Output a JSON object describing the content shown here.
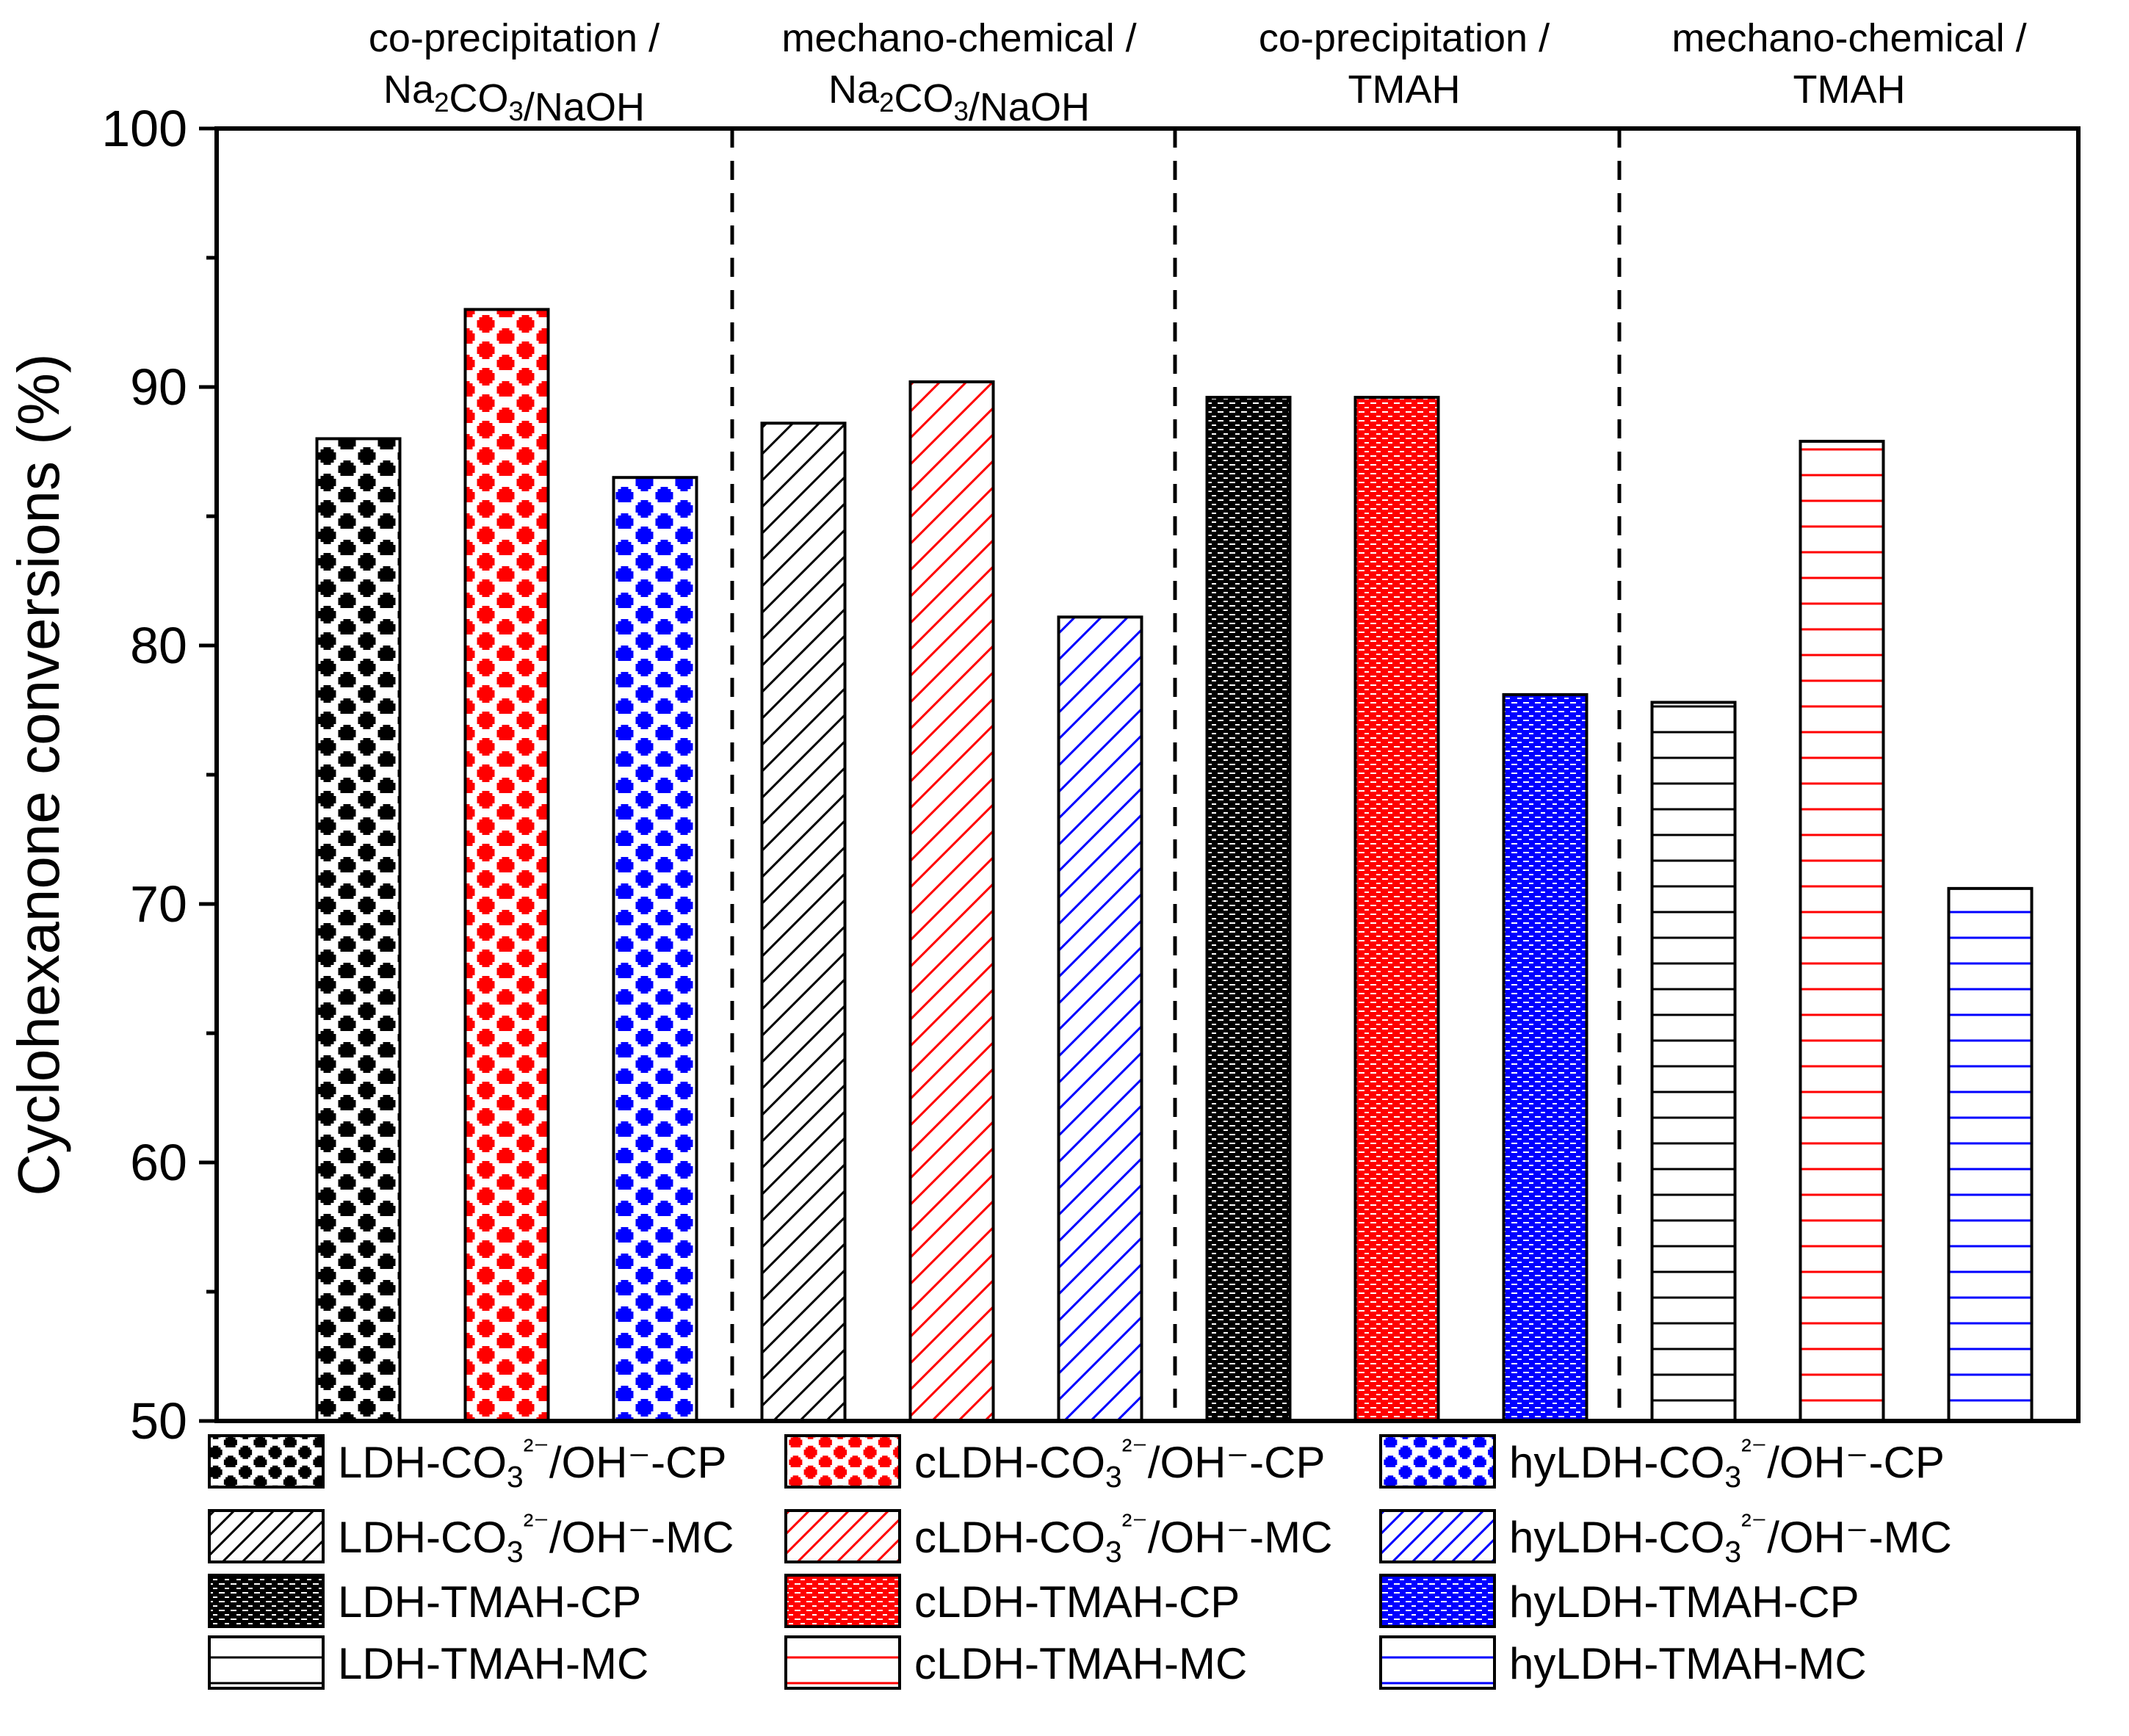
{
  "chart_data": {
    "type": "bar",
    "ylabel": "Cyclohexanone conversions (%)",
    "ylim": [
      50,
      100
    ],
    "yticks": [
      50,
      60,
      70,
      80,
      90,
      100
    ],
    "grid": false,
    "groups": [
      {
        "line1": "co-precipitation /",
        "line2": "Na2CO3/NaOH",
        "bars": [
          0,
          1,
          2
        ]
      },
      {
        "line1": "mechano-chemical /",
        "line2": "Na2CO3/NaOH",
        "bars": [
          3,
          4,
          5
        ]
      },
      {
        "line1": "co-precipitation /",
        "line2": "TMAH",
        "bars": [
          6,
          7,
          8
        ]
      },
      {
        "line1": "mechano-chemical /",
        "line2": "TMAH",
        "bars": [
          9,
          10,
          11
        ]
      }
    ],
    "series": [
      {
        "name": "LDH-CO3²⁻/OH⁻-CP",
        "value": 88.0,
        "color": "#000000",
        "pattern": "cross"
      },
      {
        "name": "cLDH-CO3²⁻/OH⁻-CP",
        "value": 93.0,
        "color": "#ff0000",
        "pattern": "cross"
      },
      {
        "name": "hyLDH-CO3²⁻/OH⁻-CP",
        "value": 86.5,
        "color": "#0000ff",
        "pattern": "cross"
      },
      {
        "name": "LDH-CO3²⁻/OH⁻-MC",
        "value": 88.6,
        "color": "#000000",
        "pattern": "diagonal"
      },
      {
        "name": "cLDH-CO3²⁻/OH⁻-MC",
        "value": 90.2,
        "color": "#ff0000",
        "pattern": "diagonal"
      },
      {
        "name": "hyLDH-CO3²⁻/OH⁻-MC",
        "value": 81.1,
        "color": "#0000ff",
        "pattern": "diagonal"
      },
      {
        "name": "LDH-TMAH-CP",
        "value": 89.6,
        "color": "#000000",
        "pattern": "dense"
      },
      {
        "name": "cLDH-TMAH-CP",
        "value": 89.6,
        "color": "#ff0000",
        "pattern": "dense"
      },
      {
        "name": "hyLDH-TMAH-CP",
        "value": 78.1,
        "color": "#0000ff",
        "pattern": "dense"
      },
      {
        "name": "LDH-TMAH-MC",
        "value": 77.8,
        "color": "#000000",
        "pattern": "horizontal"
      },
      {
        "name": "cLDH-TMAH-MC",
        "value": 87.9,
        "color": "#ff0000",
        "pattern": "horizontal"
      },
      {
        "name": "hyLDH-TMAH-MC",
        "value": 70.6,
        "color": "#0000ff",
        "pattern": "horizontal"
      }
    ],
    "legend": {
      "placement": "bottom",
      "columns": 3
    }
  }
}
